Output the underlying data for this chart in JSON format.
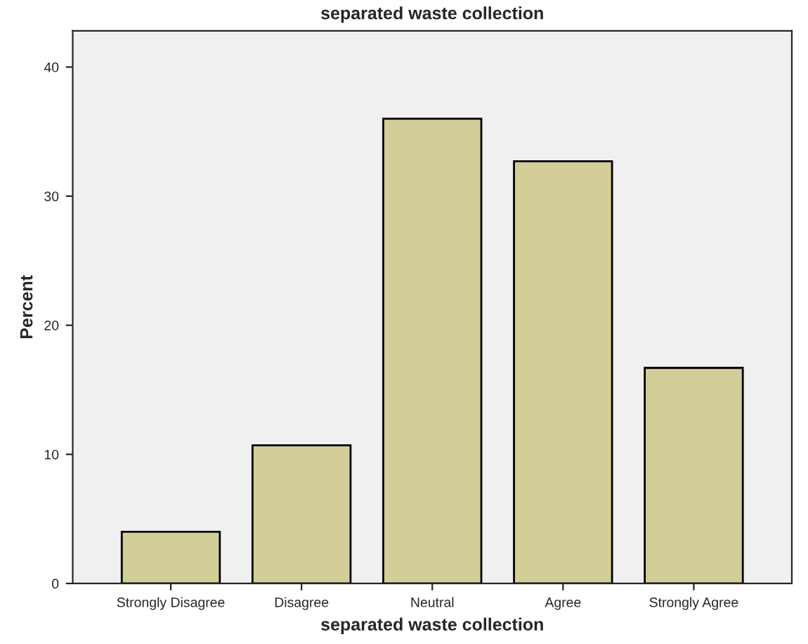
{
  "chart_data": {
    "type": "bar",
    "title": "separated waste collection",
    "xlabel": "separated waste collection",
    "ylabel": "Percent",
    "categories": [
      "Strongly Disagree",
      "Disagree",
      "Neutral",
      "Agree",
      "Strongly Agree"
    ],
    "values": [
      4.0,
      10.7,
      36.0,
      32.7,
      16.7
    ],
    "color": "#d3ce97",
    "ylim": [
      0,
      42.8
    ],
    "yticks": [
      0,
      10,
      20,
      30,
      40
    ],
    "grid": false
  }
}
